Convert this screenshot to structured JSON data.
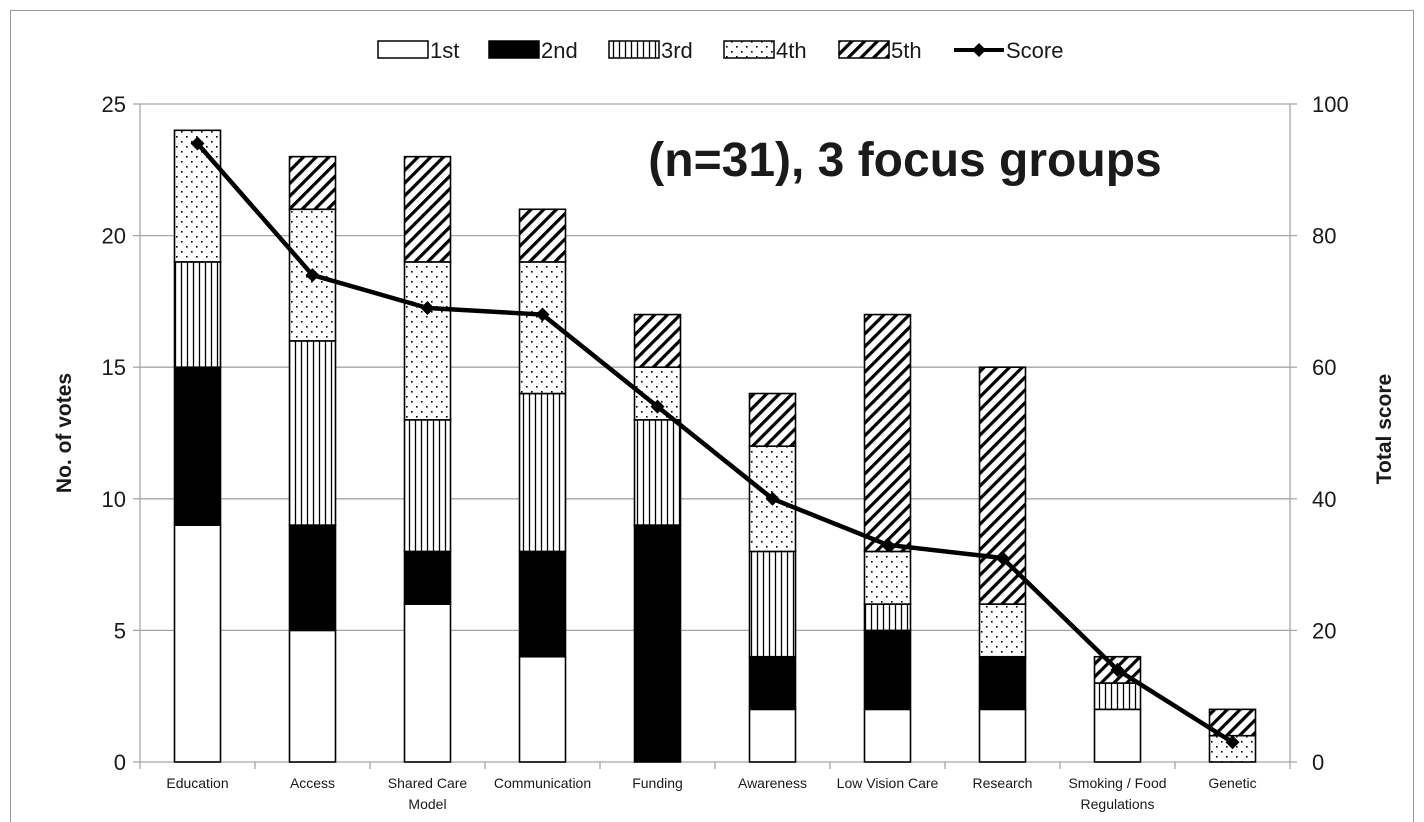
{
  "chart_data": {
    "type": "bar",
    "stacked": true,
    "categories": [
      "Education",
      "Access",
      "Shared Care\nModel",
      "Communication",
      "Funding",
      "Awareness",
      "Low Vision Care",
      "Research",
      "Smoking / Food\nRegulations",
      "Genetic"
    ],
    "series": [
      {
        "name": "1st",
        "values": [
          9,
          5,
          6,
          4,
          0,
          2,
          2,
          2,
          2,
          0
        ],
        "fill": "white"
      },
      {
        "name": "2nd",
        "values": [
          6,
          4,
          2,
          4,
          9,
          2,
          3,
          2,
          0,
          0
        ],
        "fill": "black"
      },
      {
        "name": "3rd",
        "values": [
          4,
          7,
          5,
          6,
          4,
          4,
          1,
          0,
          1,
          0
        ],
        "fill": "vertical-lines"
      },
      {
        "name": "4th",
        "values": [
          5,
          5,
          6,
          5,
          2,
          4,
          2,
          2,
          0,
          1
        ],
        "fill": "dots"
      },
      {
        "name": "5th",
        "values": [
          0,
          2,
          4,
          2,
          2,
          2,
          9,
          9,
          1,
          1
        ],
        "fill": "diagonal-hatch"
      }
    ],
    "line_series": {
      "name": "Score",
      "axis": "right",
      "values": [
        94,
        74,
        69,
        68,
        54,
        40,
        33,
        31,
        14,
        3
      ],
      "marker": "diamond"
    },
    "ylabel": "No. of votes",
    "ylim": [
      0,
      25
    ],
    "yticks": [
      0,
      5,
      10,
      15,
      20,
      25
    ],
    "y2label": "Total score",
    "y2lim": [
      0,
      100
    ],
    "y2ticks": [
      0,
      20,
      40,
      60,
      80,
      100
    ],
    "annotation": "(n=31), 3 focus groups",
    "legend": "top-center",
    "grid": true
  },
  "colors": {
    "grid": "#a6a6a6",
    "bar_outline": "#000000",
    "line": "#000000"
  }
}
